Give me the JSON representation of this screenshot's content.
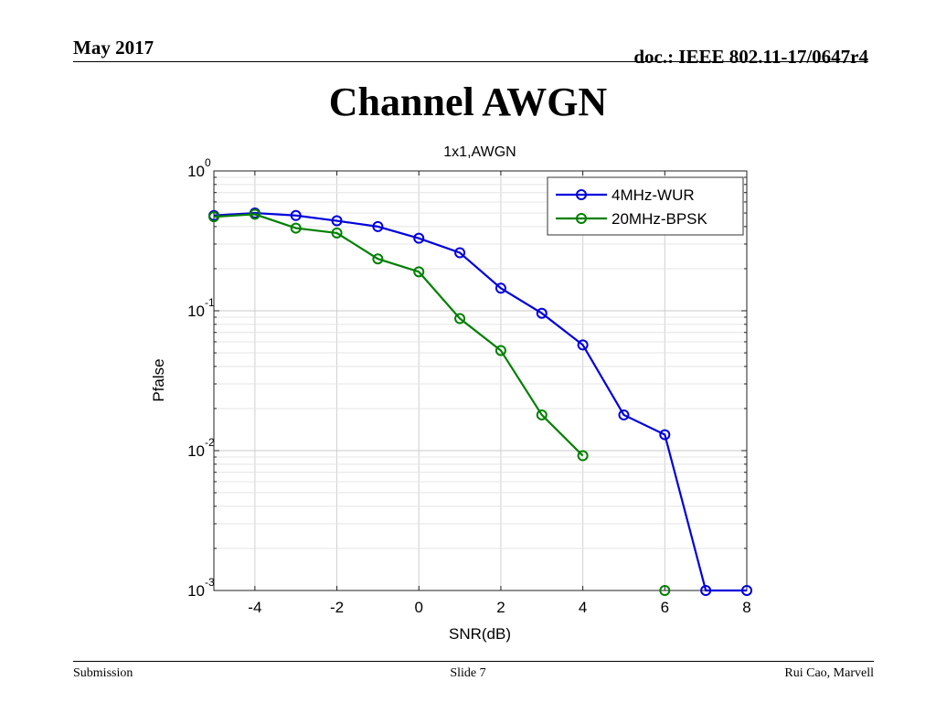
{
  "header": {
    "date": "May 2017",
    "doc": "doc.: IEEE 802.11-17/0647r4"
  },
  "slide_title": "Channel AWGN",
  "footer": {
    "left": "Submission",
    "center": "Slide 7",
    "right": "Rui Cao, Marvell"
  },
  "chart_data": {
    "type": "line",
    "title": "1x1,AWGN",
    "xlabel": "SNR(dB)",
    "ylabel": "Pfalse",
    "xlim": [
      -5,
      8
    ],
    "ylim": [
      0.001,
      1
    ],
    "yscale": "log",
    "grid": true,
    "legend_position": "top-right",
    "x_ticks": [
      -4,
      -2,
      0,
      2,
      4,
      6,
      8
    ],
    "y_ticks": [
      {
        "base": "10",
        "exp": "0",
        "value": 1
      },
      {
        "base": "10",
        "exp": "-1",
        "value": 0.1
      },
      {
        "base": "10",
        "exp": "-2",
        "value": 0.01
      },
      {
        "base": "10",
        "exp": "-3",
        "value": 0.001
      }
    ],
    "series": [
      {
        "name": "4MHz-WUR",
        "color": "#0000dd",
        "x": [
          -5,
          -4,
          -3,
          -2,
          -1,
          0,
          1,
          2,
          3,
          4,
          5,
          6,
          7,
          8
        ],
        "y": [
          0.48,
          0.5,
          0.48,
          0.44,
          0.4,
          0.33,
          0.26,
          0.145,
          0.096,
          0.057,
          0.018,
          0.013,
          0.001,
          0.001
        ]
      },
      {
        "name": "20MHz-BPSK",
        "color": "#008000",
        "x": [
          -5,
          -4,
          -3,
          -2,
          -1,
          0,
          1,
          2,
          3,
          4,
          6
        ],
        "y": [
          0.47,
          0.49,
          0.39,
          0.36,
          0.235,
          0.19,
          0.088,
          0.052,
          0.018,
          0.0092,
          0.001
        ],
        "segments": [
          [
            0,
            9
          ],
          [
            10,
            10
          ]
        ]
      }
    ]
  }
}
